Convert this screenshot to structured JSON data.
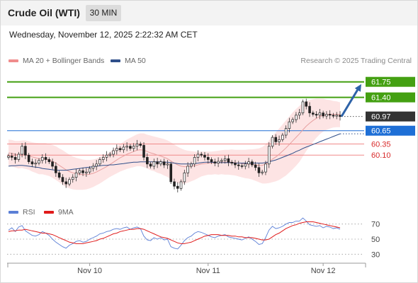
{
  "header": {
    "title": "Crude Oil (WTI)",
    "timeframe": "30 MIN"
  },
  "timestamp": "Wednesday, November 12, 2025 2:22:32 AM CET",
  "legend": {
    "items": [
      {
        "label": "MA 20 + Bollinger Bands",
        "color": "#f08c8c"
      },
      {
        "label": "MA 50",
        "color": "#2f4f8a"
      }
    ],
    "credit": "Research © 2025 Trading Central"
  },
  "rsi_legend": {
    "items": [
      {
        "label": "RSI",
        "color": "#5b7fd6"
      },
      {
        "label": "9MA",
        "color": "#e01b1b"
      }
    ]
  },
  "colors": {
    "support_green": "#44a012",
    "current": "#333333",
    "pivot_blue": "#1e6fd6",
    "resistance_red": "#d82a2a",
    "band_fill": "#fde4e4",
    "arrow": "#2d62a8",
    "candle_up": "#2f8f2f",
    "candle_down": "#c62828"
  },
  "chart_data": [
    {
      "type": "candlestick",
      "title": "Crude Oil (WTI)",
      "timeframe": "30 MIN",
      "ylim": [
        59.1,
        62.0
      ],
      "x_ticks": [
        {
          "label": "Nov 10",
          "index": 24
        },
        {
          "label": "Nov 11",
          "index": 59
        },
        {
          "label": "Nov 12",
          "index": 93
        }
      ],
      "levels": [
        {
          "label": "61.75",
          "value": 61.75,
          "color": "#44a012",
          "style": "solid"
        },
        {
          "label": "61.40",
          "value": 61.4,
          "color": "#44a012",
          "style": "solid"
        },
        {
          "label": "60.97",
          "value": 60.97,
          "color": "#333333",
          "style": "dotted"
        },
        {
          "label": "60.65",
          "value": 60.65,
          "color": "#1e6fd6",
          "style": "solid"
        },
        {
          "label": "60.35",
          "value": 60.35,
          "color": "#d82a2a",
          "style": "solid"
        },
        {
          "label": "60.10",
          "value": 60.1,
          "color": "#d82a2a",
          "style": "solid"
        }
      ],
      "close": [
        60.08,
        60.05,
        60.0,
        60.12,
        60.3,
        60.1,
        59.95,
        59.9,
        59.92,
        59.98,
        60.05,
        60.0,
        59.95,
        59.85,
        59.7,
        59.6,
        59.5,
        59.45,
        59.55,
        59.6,
        59.7,
        59.75,
        59.7,
        59.72,
        59.8,
        59.85,
        59.9,
        60.0,
        60.05,
        60.1,
        60.12,
        60.2,
        60.25,
        60.22,
        60.28,
        60.3,
        60.25,
        60.3,
        60.35,
        60.32,
        60.05,
        59.9,
        59.85,
        59.95,
        59.9,
        59.95,
        59.88,
        59.9,
        59.5,
        59.4,
        59.35,
        59.5,
        59.7,
        59.85,
        59.9,
        60.05,
        60.12,
        60.1,
        60.05,
        60.0,
        59.95,
        59.92,
        59.96,
        59.98,
        60.02,
        59.94,
        59.92,
        59.88,
        59.86,
        59.85,
        59.9,
        59.95,
        59.88,
        59.82,
        59.7,
        59.72,
        59.9,
        60.3,
        60.5,
        60.4,
        60.45,
        60.55,
        60.7,
        60.85,
        60.9,
        61.0,
        61.05,
        61.3,
        61.2,
        61.05,
        61.02,
        61.0,
        61.05,
        60.98,
        61.02,
        61.0,
        60.98,
        61.0,
        60.97
      ],
      "ma20": [
        60.15,
        60.14,
        60.12,
        60.11,
        60.12,
        60.11,
        60.09,
        60.06,
        60.04,
        60.02,
        60.02,
        60.01,
        59.99,
        59.96,
        59.92,
        59.87,
        59.82,
        59.77,
        59.73,
        59.7,
        59.68,
        59.67,
        59.66,
        59.66,
        59.67,
        59.69,
        59.72,
        59.76,
        59.8,
        59.84,
        59.89,
        59.94,
        59.99,
        60.04,
        60.08,
        60.12,
        60.15,
        60.18,
        60.21,
        60.22,
        60.21,
        60.18,
        60.15,
        60.13,
        60.1,
        60.08,
        60.05,
        60.02,
        59.97,
        59.92,
        59.88,
        59.85,
        59.84,
        59.84,
        59.85,
        59.86,
        59.88,
        59.9,
        59.91,
        59.92,
        59.92,
        59.93,
        59.93,
        59.94,
        59.94,
        59.94,
        59.94,
        59.93,
        59.92,
        59.91,
        59.9,
        59.9,
        59.89,
        59.88,
        59.87,
        59.87,
        59.9,
        59.95,
        60.01,
        60.06,
        60.12,
        60.19,
        60.26,
        60.34,
        60.42,
        60.5,
        60.58,
        60.67,
        60.75,
        60.82,
        60.88,
        60.93,
        60.97,
        61.0,
        61.01,
        61.02,
        61.02,
        61.02,
        61.01
      ],
      "ma50": [
        59.85,
        59.86,
        59.86,
        59.87,
        59.87,
        59.86,
        59.85,
        59.84,
        59.83,
        59.82,
        59.8,
        59.79,
        59.78,
        59.77,
        59.76,
        59.76,
        59.76,
        59.76,
        59.77,
        59.78,
        59.79,
        59.8,
        59.81,
        59.82,
        59.83,
        59.84,
        59.85,
        59.86,
        59.87,
        59.87,
        59.88,
        59.88,
        59.89,
        59.9,
        59.91,
        59.92,
        59.93,
        59.94,
        59.94,
        59.95,
        59.95,
        59.95,
        59.95,
        59.95,
        59.95,
        59.95,
        59.94,
        59.94,
        59.93,
        59.92,
        59.91,
        59.9,
        59.9,
        59.9,
        59.9,
        59.91,
        59.92,
        59.93,
        59.94,
        59.94,
        59.94,
        59.93,
        59.93,
        59.93,
        59.93,
        59.93,
        59.93,
        59.92,
        59.92,
        59.92,
        59.92,
        59.92,
        59.92,
        59.92,
        59.92,
        59.92,
        59.93,
        59.95,
        59.97,
        59.99,
        60.02,
        60.05,
        60.08,
        60.11,
        60.14,
        60.18,
        60.21,
        60.25,
        60.28,
        60.31,
        60.34,
        60.37,
        60.4,
        60.43,
        60.46,
        60.49,
        60.52,
        60.55,
        60.58
      ],
      "band_half_width": [
        0.3,
        0.3,
        0.3,
        0.31,
        0.31,
        0.32,
        0.32,
        0.33,
        0.34,
        0.35,
        0.35,
        0.36,
        0.36,
        0.37,
        0.38,
        0.38,
        0.39,
        0.39,
        0.38,
        0.37,
        0.36,
        0.35,
        0.34,
        0.33,
        0.32,
        0.31,
        0.3,
        0.3,
        0.29,
        0.28,
        0.28,
        0.29,
        0.3,
        0.31,
        0.32,
        0.33,
        0.34,
        0.35,
        0.36,
        0.37,
        0.38,
        0.38,
        0.39,
        0.39,
        0.4,
        0.4,
        0.41,
        0.41,
        0.42,
        0.42,
        0.41,
        0.4,
        0.38,
        0.36,
        0.34,
        0.32,
        0.3,
        0.28,
        0.27,
        0.26,
        0.26,
        0.26,
        0.27,
        0.27,
        0.28,
        0.28,
        0.29,
        0.29,
        0.3,
        0.31,
        0.32,
        0.33,
        0.34,
        0.36,
        0.38,
        0.41,
        0.44,
        0.48,
        0.52,
        0.55,
        0.58,
        0.6,
        0.62,
        0.63,
        0.64,
        0.64,
        0.63,
        0.6,
        0.56,
        0.52,
        0.48,
        0.44,
        0.4,
        0.37,
        0.34,
        0.32,
        0.3,
        0.29,
        0.28
      ],
      "projection": {
        "from_index": 98,
        "from_value": 60.97,
        "to_value": 61.7
      }
    },
    {
      "type": "line",
      "title": "RSI",
      "ylim": [
        20,
        80
      ],
      "y_ticks": [
        70,
        50,
        30
      ],
      "x_ticks": [
        {
          "label": "Nov 10",
          "index": 24
        },
        {
          "label": "Nov 11",
          "index": 59
        },
        {
          "label": "Nov 12",
          "index": 93
        }
      ],
      "series": [
        {
          "name": "RSI",
          "color": "#5b7fd6",
          "values": [
            62,
            65,
            60,
            66,
            68,
            61,
            58,
            55,
            54,
            56,
            60,
            58,
            55,
            50,
            46,
            43,
            40,
            38,
            42,
            44,
            47,
            48,
            46,
            47,
            50,
            52,
            54,
            57,
            58,
            60,
            61,
            63,
            64,
            63,
            65,
            66,
            63,
            65,
            66,
            64,
            54,
            49,
            48,
            52,
            50,
            52,
            49,
            50,
            40,
            38,
            37,
            42,
            48,
            52,
            54,
            58,
            60,
            59,
            57,
            55,
            53,
            52,
            54,
            55,
            56,
            53,
            52,
            51,
            50,
            49,
            51,
            53,
            50,
            47,
            43,
            44,
            52,
            62,
            67,
            64,
            65,
            67,
            70,
            72,
            72,
            74,
            74,
            78,
            74,
            69,
            68,
            67,
            68,
            65,
            67,
            66,
            64,
            65,
            63
          ]
        },
        {
          "name": "9MA",
          "color": "#e01b1b",
          "values": [
            60,
            61,
            61,
            62,
            62,
            63,
            62,
            61,
            60,
            59,
            58,
            58,
            57,
            56,
            54,
            52,
            50,
            48,
            46,
            45,
            44,
            44,
            44,
            45,
            46,
            47,
            48,
            50,
            51,
            53,
            55,
            57,
            58,
            60,
            61,
            62,
            63,
            63,
            64,
            64,
            63,
            61,
            59,
            57,
            55,
            53,
            52,
            51,
            49,
            47,
            45,
            44,
            44,
            45,
            46,
            48,
            50,
            52,
            54,
            55,
            56,
            56,
            56,
            55,
            55,
            55,
            54,
            54,
            53,
            53,
            52,
            52,
            52,
            51,
            50,
            49,
            49,
            50,
            53,
            56,
            58,
            61,
            64,
            66,
            68,
            69,
            71,
            72,
            73,
            73,
            73,
            72,
            71,
            70,
            69,
            68,
            67,
            66,
            65
          ]
        }
      ]
    }
  ]
}
